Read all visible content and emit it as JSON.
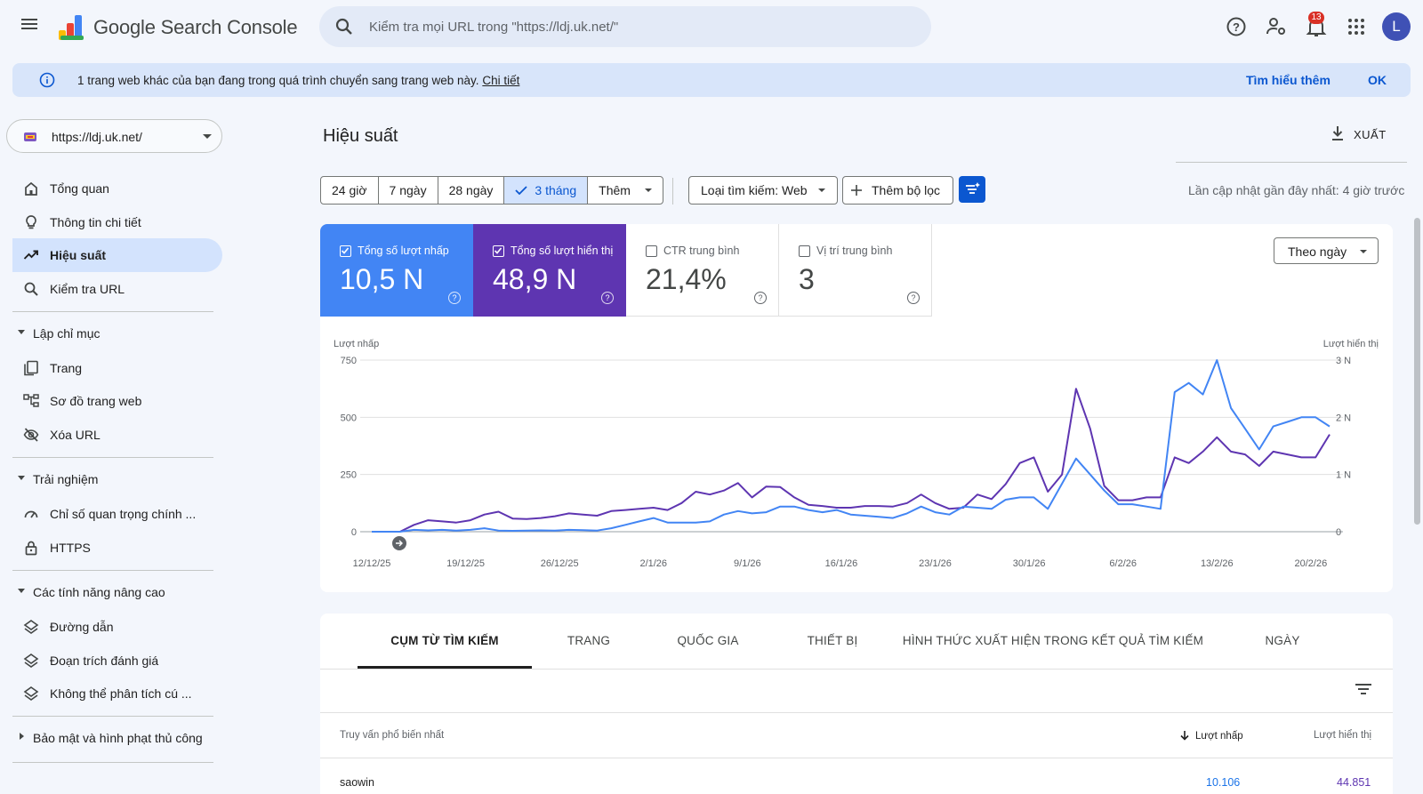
{
  "header": {
    "app_title": "Google Search Console",
    "search_placeholder": "Kiểm tra mọi URL trong \"https://ldj.uk.net/\"",
    "notification_count": "13",
    "avatar_letter": "L"
  },
  "banner": {
    "message": "1 trang web khác của bạn đang trong quá trình chuyển sang trang web này.",
    "detail_link": "Chi tiết",
    "learn_more": "Tìm hiểu thêm",
    "ok": "OK"
  },
  "sidebar": {
    "property": "https://ldj.uk.net/",
    "items": [
      {
        "label": "Tổng quan",
        "icon": "home-icon"
      },
      {
        "label": "Thông tin chi tiết",
        "icon": "lightbulb-icon"
      },
      {
        "label": "Hiệu suất",
        "icon": "trending-up-icon",
        "active": true
      },
      {
        "label": "Kiểm tra URL",
        "icon": "search-icon"
      }
    ],
    "sections": [
      {
        "label": "Lập chỉ mục",
        "items": [
          {
            "label": "Trang",
            "icon": "pages-icon"
          },
          {
            "label": "Sơ đồ trang web",
            "icon": "sitemap-icon"
          },
          {
            "label": "Xóa URL",
            "icon": "eye-off-icon"
          }
        ]
      },
      {
        "label": "Trải nghiệm",
        "items": [
          {
            "label": "Chỉ số quan trọng chính ...",
            "icon": "speed-icon"
          },
          {
            "label": "HTTPS",
            "icon": "lock-icon"
          }
        ]
      },
      {
        "label": "Các tính năng nâng cao",
        "items": [
          {
            "label": "Đường dẫn",
            "icon": "layers-icon"
          },
          {
            "label": "Đoạn trích đánh giá",
            "icon": "layers-icon"
          },
          {
            "label": "Không thể phân tích cú ...",
            "icon": "layers-icon"
          }
        ]
      },
      {
        "label": "Bảo mật và hình phạt thủ công"
      }
    ]
  },
  "main": {
    "title": "Hiệu suất",
    "export": "XUẤT",
    "ranges": [
      "24 giờ",
      "7 ngày",
      "28 ngày",
      "3 tháng",
      "Thêm"
    ],
    "selected_range": "3 tháng",
    "search_type": "Loại tìm kiếm: Web",
    "add_filter": "Thêm bộ lọc",
    "last_updated": "Lần cập nhật gần đây nhất: 4 giờ trước",
    "metrics": [
      {
        "name": "Tổng số lượt nhấp",
        "value": "10,5 N",
        "checked": true
      },
      {
        "name": "Tổng số lượt hiển thị",
        "value": "48,9 N",
        "checked": true
      },
      {
        "name": "CTR trung bình",
        "value": "21,4%",
        "checked": false
      },
      {
        "name": "Vị trí trung bình",
        "value": "3",
        "checked": false
      }
    ],
    "granularity": "Theo ngày"
  },
  "chart_data": {
    "type": "line",
    "y_left_label": "Lượt nhấp",
    "y_right_label": "Lượt hiển thị",
    "y_left_ticks": [
      "750",
      "500",
      "250",
      "0"
    ],
    "y_right_ticks": [
      "3 N",
      "2 N",
      "1 N",
      "0"
    ],
    "ylim_left": [
      0,
      750
    ],
    "ylim_right": [
      0,
      3000
    ],
    "x_ticks": [
      "12/12/25",
      "19/12/25",
      "26/12/25",
      "2/1/26",
      "9/1/26",
      "16/1/26",
      "23/1/26",
      "30/1/26",
      "6/2/26",
      "13/2/26",
      "20/2/26"
    ],
    "colors": {
      "clicks": "#4285f4",
      "impressions": "#5e35b1"
    },
    "series": [
      {
        "name": "Lượt nhấp",
        "axis": "left",
        "values": [
          0,
          0,
          0,
          8,
          6,
          8,
          5,
          8,
          15,
          5,
          4,
          5,
          6,
          5,
          8,
          7,
          5,
          15,
          30,
          45,
          60,
          40,
          40,
          40,
          45,
          75,
          90,
          80,
          85,
          110,
          110,
          95,
          85,
          95,
          75,
          70,
          65,
          60,
          80,
          110,
          85,
          75,
          110,
          105,
          100,
          140,
          150,
          150,
          100,
          210,
          320,
          250,
          180,
          120,
          120,
          110,
          100,
          610,
          650,
          600,
          750,
          540,
          450,
          360,
          460,
          480,
          500,
          500,
          460
        ]
      },
      {
        "name": "Lượt hiển thị",
        "axis": "right",
        "values": [
          0,
          0,
          0,
          120,
          200,
          180,
          160,
          200,
          300,
          350,
          230,
          220,
          240,
          270,
          320,
          300,
          280,
          360,
          380,
          400,
          420,
          380,
          500,
          700,
          650,
          720,
          850,
          600,
          790,
          780,
          600,
          470,
          450,
          420,
          420,
          450,
          450,
          440,
          500,
          650,
          500,
          400,
          420,
          650,
          570,
          830,
          1200,
          1300,
          700,
          1000,
          2500,
          1800,
          800,
          550,
          550,
          600,
          600,
          1300,
          1200,
          1400,
          1650,
          1400,
          1350,
          1150,
          1400,
          1350,
          1300,
          1300,
          1700
        ]
      }
    ]
  },
  "table": {
    "tabs": [
      "CỤM TỪ TÌM KIẾM",
      "TRANG",
      "QUỐC GIA",
      "THIẾT BỊ",
      "HÌNH THỨC XUẤT HIỆN TRONG KẾT QUẢ TÌM KIẾM",
      "NGÀY"
    ],
    "col_query": "Truy vấn phổ biến nhất",
    "col_clicks": "Lượt nhấp",
    "col_impressions": "Lượt hiển thị",
    "rows": [
      {
        "query": "saowin",
        "clicks": "10.106",
        "impressions": "44.851"
      }
    ]
  }
}
